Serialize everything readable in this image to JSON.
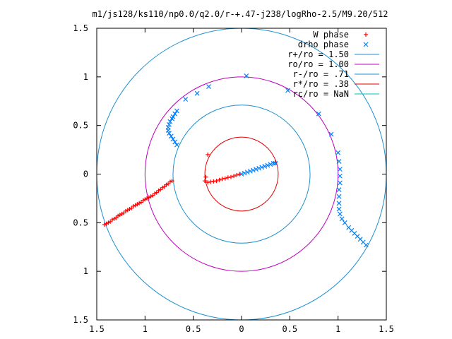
{
  "colors": {
    "background": "#ffffff",
    "frame": "#000000",
    "w_phase": "#ff0000",
    "drho_phase": "#0080ff",
    "r_plus": "#1e90d0",
    "ro": "#c000c0",
    "r_minus": "#1e90d0",
    "r_star": "#e00000",
    "rc": "#00c0c0"
  },
  "chart_data": {
    "type": "scatter",
    "title": "m1/js128/ks110/np0.0/q2.0/r-+.47-j238/logRho-2.5/M9.20/512",
    "xlabel": "",
    "ylabel": "",
    "xlim": [
      -1.5,
      1.5
    ],
    "ylim": [
      -1.5,
      1.5
    ],
    "grid": false,
    "legend_position": "top-right",
    "x_ticks": [
      {
        "value": -1.5,
        "label": "1.5"
      },
      {
        "value": -1.0,
        "label": "1"
      },
      {
        "value": -0.5,
        "label": "0.5"
      },
      {
        "value": 0.0,
        "label": "0"
      },
      {
        "value": 0.5,
        "label": "0.5"
      },
      {
        "value": 1.0,
        "label": "1"
      },
      {
        "value": 1.5,
        "label": "1.5"
      }
    ],
    "y_ticks": [
      {
        "value": 1.5,
        "label": "1.5"
      },
      {
        "value": 1.0,
        "label": "1"
      },
      {
        "value": 0.5,
        "label": "0.5"
      },
      {
        "value": 0.0,
        "label": "0"
      },
      {
        "value": -0.5,
        "label": "0.5"
      },
      {
        "value": -1.0,
        "label": "1"
      },
      {
        "value": -1.5,
        "label": "1.5"
      }
    ],
    "legend": [
      {
        "label": "W phase",
        "kind": "plus",
        "color_key": "w_phase"
      },
      {
        "label": "drho phase",
        "kind": "cross",
        "color_key": "drho_phase"
      },
      {
        "label": "r+/ro = 1.50",
        "kind": "line",
        "color_key": "r_plus"
      },
      {
        "label": "ro/ro = 1.00",
        "kind": "line",
        "color_key": "ro"
      },
      {
        "label": "r-/ro = .71",
        "kind": "line",
        "color_key": "r_minus"
      },
      {
        "label": "r*/ro = .38",
        "kind": "line",
        "color_key": "r_star"
      },
      {
        "label": "rc/ro = NaN",
        "kind": "line",
        "color_key": "rc"
      }
    ],
    "circles": [
      {
        "name": "r+/ro",
        "radius": 1.5,
        "color_key": "r_plus"
      },
      {
        "name": "ro/ro",
        "radius": 1.0,
        "color_key": "ro"
      },
      {
        "name": "r-/ro",
        "radius": 0.71,
        "color_key": "r_minus"
      },
      {
        "name": "r*/ro",
        "radius": 0.38,
        "color_key": "r_star"
      }
    ],
    "series": [
      {
        "name": "W phase",
        "marker": "plus",
        "color_key": "w_phase",
        "points": [
          [
            -1.42,
            -0.52
          ],
          [
            -1.4,
            -0.51
          ],
          [
            -1.38,
            -0.5
          ],
          [
            -1.36,
            -0.49
          ],
          [
            -1.34,
            -0.47
          ],
          [
            -1.32,
            -0.46
          ],
          [
            -1.3,
            -0.45
          ],
          [
            -1.28,
            -0.43
          ],
          [
            -1.26,
            -0.42
          ],
          [
            -1.24,
            -0.41
          ],
          [
            -1.22,
            -0.4
          ],
          [
            -1.2,
            -0.38
          ],
          [
            -1.18,
            -0.37
          ],
          [
            -1.16,
            -0.36
          ],
          [
            -1.14,
            -0.35
          ],
          [
            -1.12,
            -0.33
          ],
          [
            -1.1,
            -0.32
          ],
          [
            -1.08,
            -0.31
          ],
          [
            -1.06,
            -0.3
          ],
          [
            -1.04,
            -0.29
          ],
          [
            -1.02,
            -0.27
          ],
          [
            -1.0,
            -0.26
          ],
          [
            -0.98,
            -0.25
          ],
          [
            -0.96,
            -0.24
          ],
          [
            -0.94,
            -0.23
          ],
          [
            -0.92,
            -0.22
          ],
          [
            -0.9,
            -0.2
          ],
          [
            -0.88,
            -0.19
          ],
          [
            -0.86,
            -0.17
          ],
          [
            -0.84,
            -0.16
          ],
          [
            -0.82,
            -0.14
          ],
          [
            -0.8,
            -0.13
          ],
          [
            -0.78,
            -0.11
          ],
          [
            -0.76,
            -0.1
          ],
          [
            -0.74,
            -0.08
          ],
          [
            -0.72,
            -0.07
          ],
          [
            -0.35,
            0.2
          ],
          [
            -0.37,
            -0.03
          ],
          [
            -0.38,
            -0.07
          ],
          [
            -0.35,
            -0.085
          ],
          [
            -0.32,
            -0.08
          ],
          [
            -0.29,
            -0.075
          ],
          [
            -0.26,
            -0.07
          ],
          [
            -0.23,
            -0.06
          ],
          [
            -0.2,
            -0.05
          ],
          [
            -0.17,
            -0.045
          ],
          [
            -0.14,
            -0.035
          ],
          [
            -0.11,
            -0.03
          ],
          [
            -0.08,
            -0.02
          ],
          [
            -0.05,
            -0.01
          ],
          [
            -0.02,
            0.0
          ],
          [
            0.35,
            0.12
          ]
        ]
      },
      {
        "name": "drho phase",
        "marker": "cross",
        "color_key": "drho_phase",
        "points": [
          [
            0.0,
            0.0
          ],
          [
            0.03,
            0.01
          ],
          [
            0.06,
            0.02
          ],
          [
            0.09,
            0.03
          ],
          [
            0.12,
            0.04
          ],
          [
            0.15,
            0.05
          ],
          [
            0.18,
            0.06
          ],
          [
            0.21,
            0.07
          ],
          [
            0.24,
            0.08
          ],
          [
            0.27,
            0.09
          ],
          [
            0.3,
            0.1
          ],
          [
            0.33,
            0.11
          ],
          [
            0.35,
            0.11
          ],
          [
            -0.67,
            0.3
          ],
          [
            -0.69,
            0.33
          ],
          [
            -0.71,
            0.36
          ],
          [
            -0.73,
            0.39
          ],
          [
            -0.75,
            0.42
          ],
          [
            -0.76,
            0.45
          ],
          [
            -0.76,
            0.48
          ],
          [
            -0.75,
            0.51
          ],
          [
            -0.74,
            0.54
          ],
          [
            -0.72,
            0.57
          ],
          [
            -0.71,
            0.59
          ],
          [
            -0.69,
            0.62
          ],
          [
            -0.67,
            0.65
          ],
          [
            -0.58,
            0.77
          ],
          [
            -0.46,
            0.83
          ],
          [
            -0.34,
            0.9
          ],
          [
            0.05,
            1.01
          ],
          [
            0.48,
            0.86
          ],
          [
            0.8,
            0.62
          ],
          [
            0.93,
            0.41
          ],
          [
            1.0,
            0.22
          ],
          [
            1.01,
            0.13
          ],
          [
            1.02,
            0.05
          ],
          [
            1.02,
            -0.02
          ],
          [
            1.02,
            -0.09
          ],
          [
            1.01,
            -0.16
          ],
          [
            1.01,
            -0.23
          ],
          [
            1.01,
            -0.3
          ],
          [
            1.01,
            -0.36
          ],
          [
            1.02,
            -0.41
          ],
          [
            1.04,
            -0.46
          ],
          [
            1.07,
            -0.5
          ],
          [
            1.11,
            -0.55
          ],
          [
            1.14,
            -0.58
          ],
          [
            1.17,
            -0.61
          ],
          [
            1.2,
            -0.64
          ],
          [
            1.23,
            -0.67
          ],
          [
            1.26,
            -0.7
          ],
          [
            1.29,
            -0.73
          ]
        ]
      }
    ]
  }
}
